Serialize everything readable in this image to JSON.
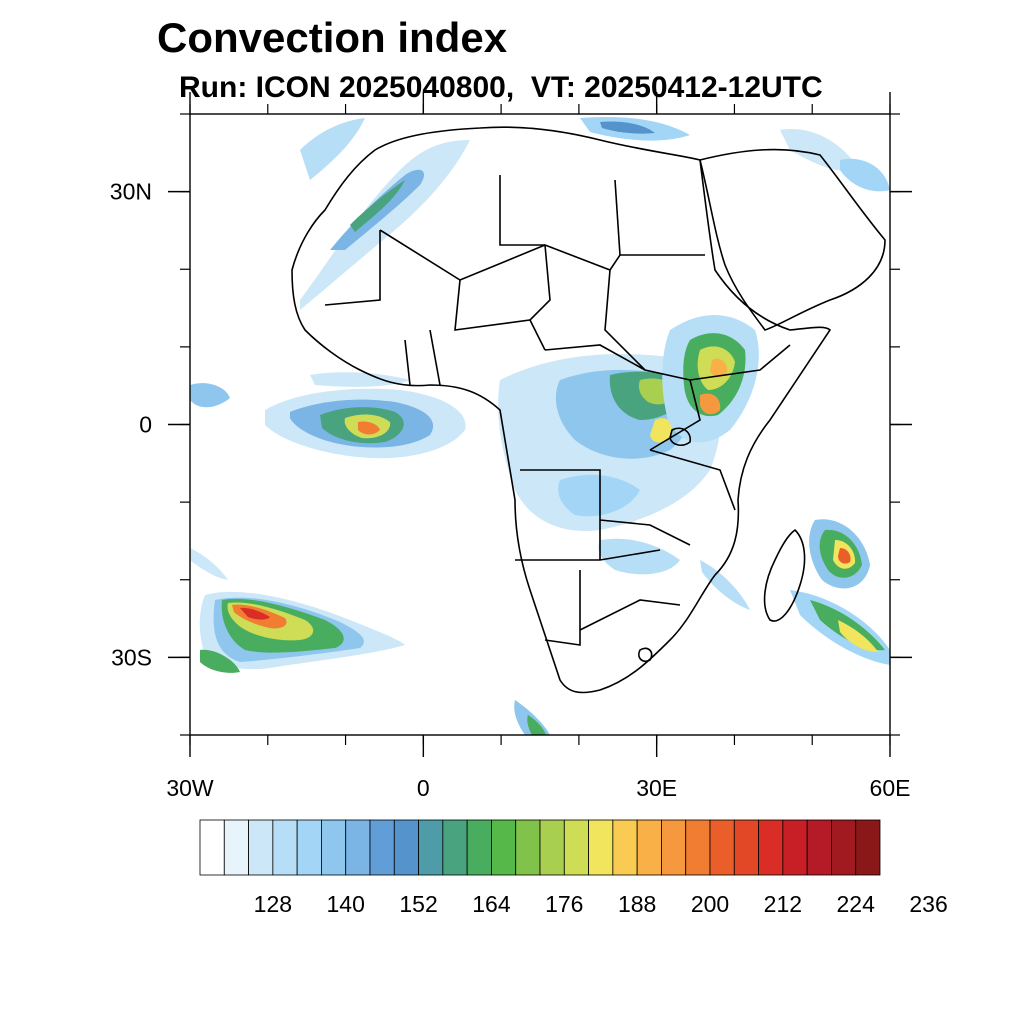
{
  "title": "Convection index",
  "subtitle": "Run: ICON 2025040800,  VT: 20250412-12UTC",
  "map": {
    "lon_range": [
      -30,
      60
    ],
    "lat_range": [
      -40,
      40
    ],
    "x_ticks": [
      {
        "lon": -30,
        "label": "30W"
      },
      {
        "lon": 0,
        "label": "0"
      },
      {
        "lon": 30,
        "label": "30E"
      },
      {
        "lon": 60,
        "label": "60E"
      }
    ],
    "y_ticks": [
      {
        "lat": 30,
        "label": "30N"
      },
      {
        "lat": 0,
        "label": "0"
      },
      {
        "lat": -30,
        "label": "30S"
      }
    ]
  },
  "colorbar": {
    "colors": [
      "#ffffff",
      "#e8f4fc",
      "#cce7f8",
      "#b7def7",
      "#a3d6f6",
      "#8ec6ee",
      "#7ab5e6",
      "#619ed8",
      "#5593cc",
      "#4d9ca8",
      "#4aa37f",
      "#49ad5f",
      "#55b849",
      "#80c24a",
      "#a8cf4f",
      "#cfdc56",
      "#f0e55c",
      "#f9cb52",
      "#f8b047",
      "#f6983d",
      "#f07d32",
      "#ea5f29",
      "#e34826",
      "#d92d26",
      "#c81f27",
      "#b51b27",
      "#a11a1f",
      "#8b1818"
    ],
    "labels": [
      "128",
      "140",
      "152",
      "164",
      "176",
      "188",
      "200",
      "212",
      "224",
      "236"
    ]
  }
}
